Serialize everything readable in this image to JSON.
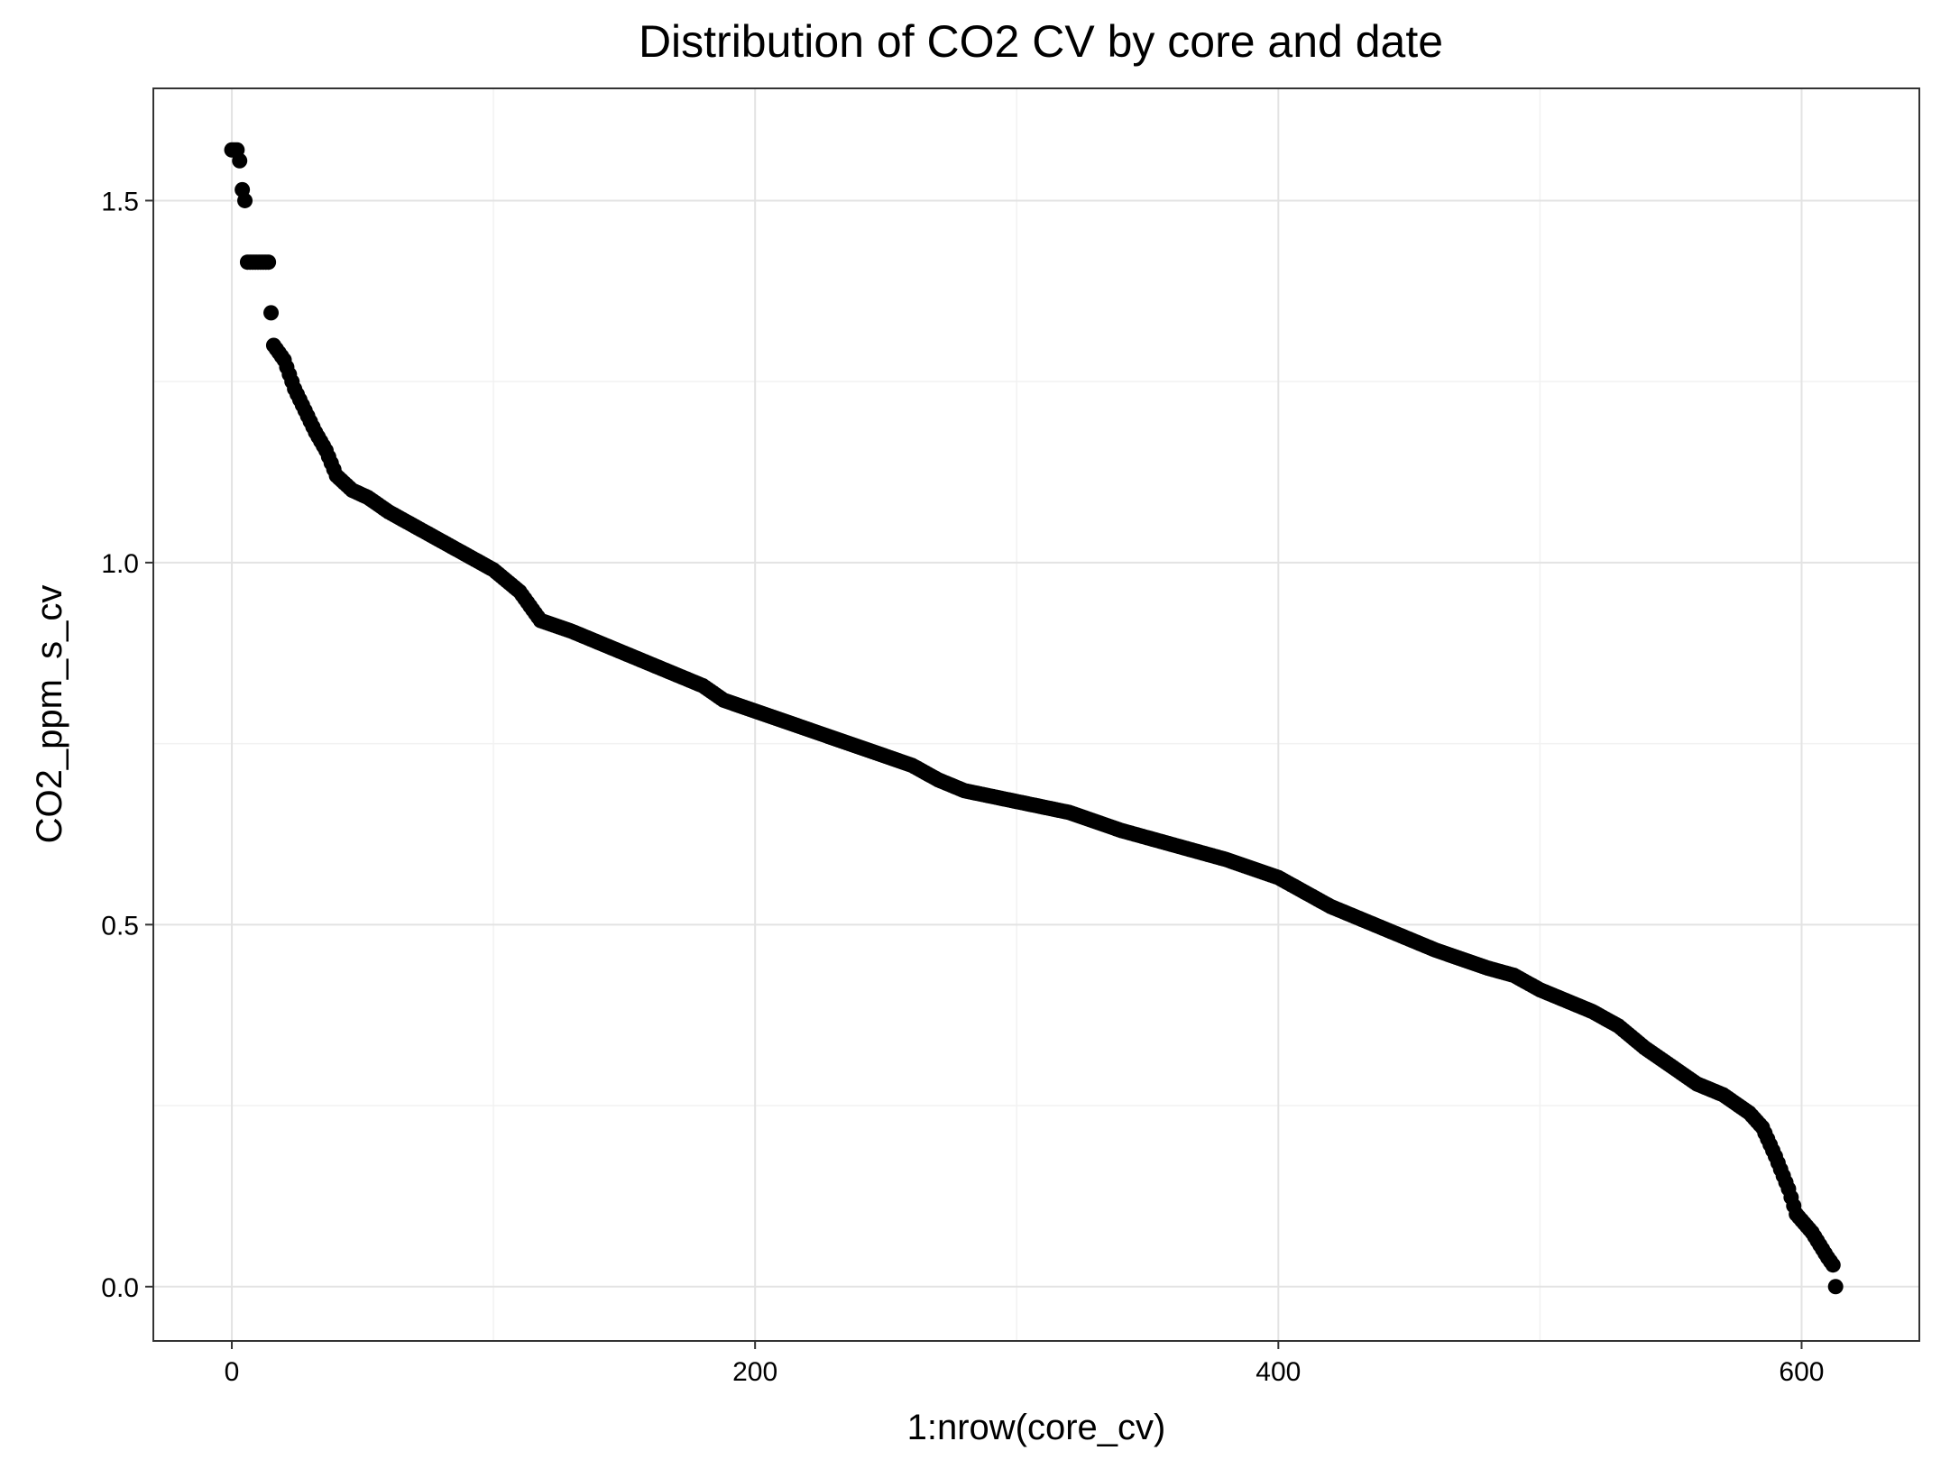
{
  "chart_data": {
    "type": "scatter",
    "title": "Distribution of CO2 CV by core and date",
    "xlabel": "1:nrow(core_cv)",
    "ylabel": "CO2_ppm_s_cv",
    "xlim": [
      -30,
      645
    ],
    "ylim": [
      -0.075,
      1.655
    ],
    "x_ticks": [
      0,
      200,
      400,
      600
    ],
    "x_tick_labels": [
      "0",
      "200",
      "400",
      "600"
    ],
    "y_ticks": [
      0.0,
      0.5,
      1.0,
      1.5
    ],
    "y_tick_labels": [
      "0.0",
      "0.5",
      "1.0",
      "1.5"
    ],
    "x_minor_ticks": [
      100,
      300,
      500
    ],
    "y_minor_ticks": [
      0.25,
      0.75,
      1.25
    ],
    "grid": true,
    "point_color": "#000000",
    "n_points": 614,
    "curve_knots": [
      [
        16,
        1.3
      ],
      [
        20,
        1.28
      ],
      [
        24,
        1.24
      ],
      [
        28,
        1.21
      ],
      [
        32,
        1.18
      ],
      [
        36,
        1.155
      ],
      [
        40,
        1.12
      ],
      [
        46,
        1.1
      ],
      [
        52,
        1.09
      ],
      [
        60,
        1.07
      ],
      [
        70,
        1.05
      ],
      [
        80,
        1.03
      ],
      [
        90,
        1.01
      ],
      [
        100,
        0.99
      ],
      [
        110,
        0.96
      ],
      [
        118,
        0.92
      ],
      [
        130,
        0.905
      ],
      [
        140,
        0.89
      ],
      [
        150,
        0.875
      ],
      [
        160,
        0.86
      ],
      [
        170,
        0.845
      ],
      [
        180,
        0.83
      ],
      [
        188,
        0.81
      ],
      [
        200,
        0.795
      ],
      [
        220,
        0.77
      ],
      [
        240,
        0.745
      ],
      [
        260,
        0.72
      ],
      [
        270,
        0.7
      ],
      [
        280,
        0.685
      ],
      [
        300,
        0.67
      ],
      [
        320,
        0.655
      ],
      [
        340,
        0.63
      ],
      [
        360,
        0.61
      ],
      [
        380,
        0.59
      ],
      [
        400,
        0.565
      ],
      [
        410,
        0.545
      ],
      [
        420,
        0.525
      ],
      [
        440,
        0.495
      ],
      [
        460,
        0.465
      ],
      [
        480,
        0.44
      ],
      [
        490,
        0.43
      ],
      [
        500,
        0.41
      ],
      [
        520,
        0.38
      ],
      [
        530,
        0.36
      ],
      [
        540,
        0.33
      ],
      [
        560,
        0.28
      ],
      [
        570,
        0.265
      ],
      [
        580,
        0.24
      ],
      [
        585,
        0.22
      ],
      [
        590,
        0.18
      ],
      [
        595,
        0.135
      ],
      [
        598,
        0.1
      ],
      [
        604,
        0.075
      ],
      [
        610,
        0.04
      ]
    ],
    "head_points": [
      {
        "x": 0,
        "y": 1.57
      },
      {
        "x": 1,
        "y": 1.57
      },
      {
        "x": 2,
        "y": 1.57
      },
      {
        "x": 3,
        "y": 1.555
      },
      {
        "x": 4,
        "y": 1.515
      },
      {
        "x": 5,
        "y": 1.5
      },
      {
        "x": 6,
        "y": 1.415
      },
      {
        "x": 7,
        "y": 1.415
      },
      {
        "x": 8,
        "y": 1.415
      },
      {
        "x": 9,
        "y": 1.415
      },
      {
        "x": 10,
        "y": 1.415
      },
      {
        "x": 11,
        "y": 1.415
      },
      {
        "x": 12,
        "y": 1.415
      },
      {
        "x": 13,
        "y": 1.415
      },
      {
        "x": 14,
        "y": 1.415
      },
      {
        "x": 15,
        "y": 1.345
      }
    ],
    "tail_points": [
      {
        "x": 611,
        "y": 0.035
      },
      {
        "x": 612,
        "y": 0.03
      },
      {
        "x": 613,
        "y": 0.0
      }
    ]
  }
}
